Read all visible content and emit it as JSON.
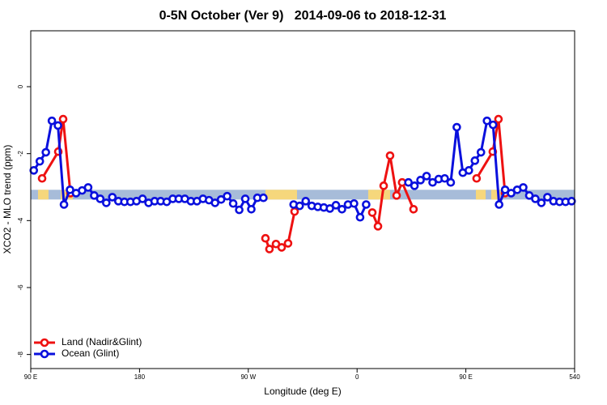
{
  "chart_data": {
    "type": "line",
    "title": "0-5N October (Ver 9)   2014-09-06 to 2018-12-31",
    "x_label": "Longitude (deg E)",
    "y_label": "XCO2 - MLO trend (ppm)",
    "xlim": [
      90,
      540
    ],
    "ylim": [
      -8.42,
      1.67
    ],
    "xticks": [
      {
        "value": 90,
        "label": "90 E"
      },
      180,
      {
        "value": 270,
        "label": "90 W"
      },
      {
        "value": 360,
        "label": "0"
      },
      {
        "value": 450,
        "label": "90 E"
      },
      540
    ],
    "yticks": [
      0,
      -2,
      -4,
      -6,
      -8
    ],
    "legend": "bottom-left",
    "mask": {
      "y_range": [
        -3.37,
        -3.08
      ],
      "ocean_color": "#a7bcd9",
      "land_color": "#f6d77c",
      "land_segments": [
        [
          96,
          104.7
        ],
        [
          114.8,
          124.8
        ],
        [
          284.2,
          310.3
        ],
        [
          369.2,
          387.3
        ],
        [
          458.3,
          466.4
        ],
        [
          471,
          478.6
        ]
      ]
    },
    "series": [
      {
        "name": "Land (Nadir&Glint)",
        "color": "#ee1111",
        "x": [
          99.4,
          112.8,
          116.8,
          122.8,
          null,
          284.2,
          287.5,
          292.9,
          297.6,
          302.9,
          308.3,
          null,
          372.6,
          377.3,
          382,
          387.3,
          392.7,
          397.3,
          406.7,
          null,
          458.9,
          472.3,
          477,
          482.4
        ],
        "values": [
          -2.74,
          -1.94,
          -0.97,
          -3.18,
          null,
          -4.53,
          -4.85,
          -4.7,
          -4.8,
          -4.68,
          -3.73,
          null,
          -3.76,
          -4.17,
          -2.96,
          -2.06,
          -3.25,
          -2.86,
          -3.66,
          null,
          -2.74,
          -1.94,
          -0.97,
          -3.18
        ]
      },
      {
        "name": "Ocean (Glint)",
        "color": "#0a10dd",
        "x": [
          92.5,
          97.5,
          102.5,
          107.5,
          112.5,
          117.5,
          122.5,
          127.5,
          132.5,
          137.5,
          142.5,
          147.5,
          152.5,
          157.5,
          162.5,
          167.5,
          172.5,
          177.5,
          182.5,
          187.5,
          192.5,
          197.5,
          202.5,
          207.5,
          212.5,
          217.5,
          222.5,
          227.5,
          232.5,
          237.5,
          242.5,
          247.5,
          252.5,
          257.5,
          262.5,
          267.5,
          272.5,
          277.5,
          282.5,
          287.5,
          292.5,
          297.5,
          302.5,
          307.5,
          312.5,
          317.5,
          322.5,
          327.5,
          332.5,
          337.5,
          342.5,
          347.5,
          352.5,
          357.5,
          362.5,
          367.5,
          372.5,
          377.5,
          382.5,
          387.5,
          392.5,
          397.5,
          402.5,
          407.5,
          412.5,
          417.5,
          422.5,
          427.5,
          432.5,
          437.5,
          442.5,
          447.5,
          452.5,
          457.5,
          462.5,
          467.5,
          472.5,
          477.5,
          482.5,
          487.5,
          492.5,
          497.5,
          502.5,
          507.5,
          512.5,
          517.5,
          522.5,
          527.5,
          532.5,
          537.5
        ],
        "values": [
          -2.5,
          -2.23,
          -1.96,
          -1.02,
          -1.16,
          -3.52,
          -3.08,
          -3.18,
          -3.1,
          -3.01,
          -3.25,
          -3.35,
          -3.47,
          -3.3,
          -3.42,
          -3.44,
          -3.44,
          -3.42,
          -3.35,
          -3.47,
          -3.42,
          -3.42,
          -3.44,
          -3.35,
          -3.35,
          -3.35,
          -3.42,
          -3.42,
          -3.35,
          -3.39,
          -3.47,
          -3.37,
          -3.27,
          -3.49,
          -3.68,
          -3.35,
          -3.66,
          -3.32,
          -3.32,
          null,
          null,
          null,
          null,
          -3.52,
          -3.56,
          -3.42,
          -3.56,
          -3.59,
          -3.61,
          -3.64,
          -3.54,
          -3.66,
          -3.52,
          -3.49,
          -3.9,
          -3.52,
          null,
          null,
          null,
          null,
          null,
          null,
          -2.86,
          -2.96,
          -2.79,
          -2.67,
          -2.86,
          -2.76,
          -2.74,
          -2.86,
          -1.21,
          -2.57,
          -2.5,
          -2.21,
          -1.96,
          -1.02,
          -1.14,
          -3.52,
          -3.08,
          -3.18,
          -3.08,
          -3.01,
          -3.25,
          -3.35,
          -3.47,
          -3.3,
          -3.42,
          -3.44,
          -3.44,
          -3.42
        ]
      }
    ]
  }
}
